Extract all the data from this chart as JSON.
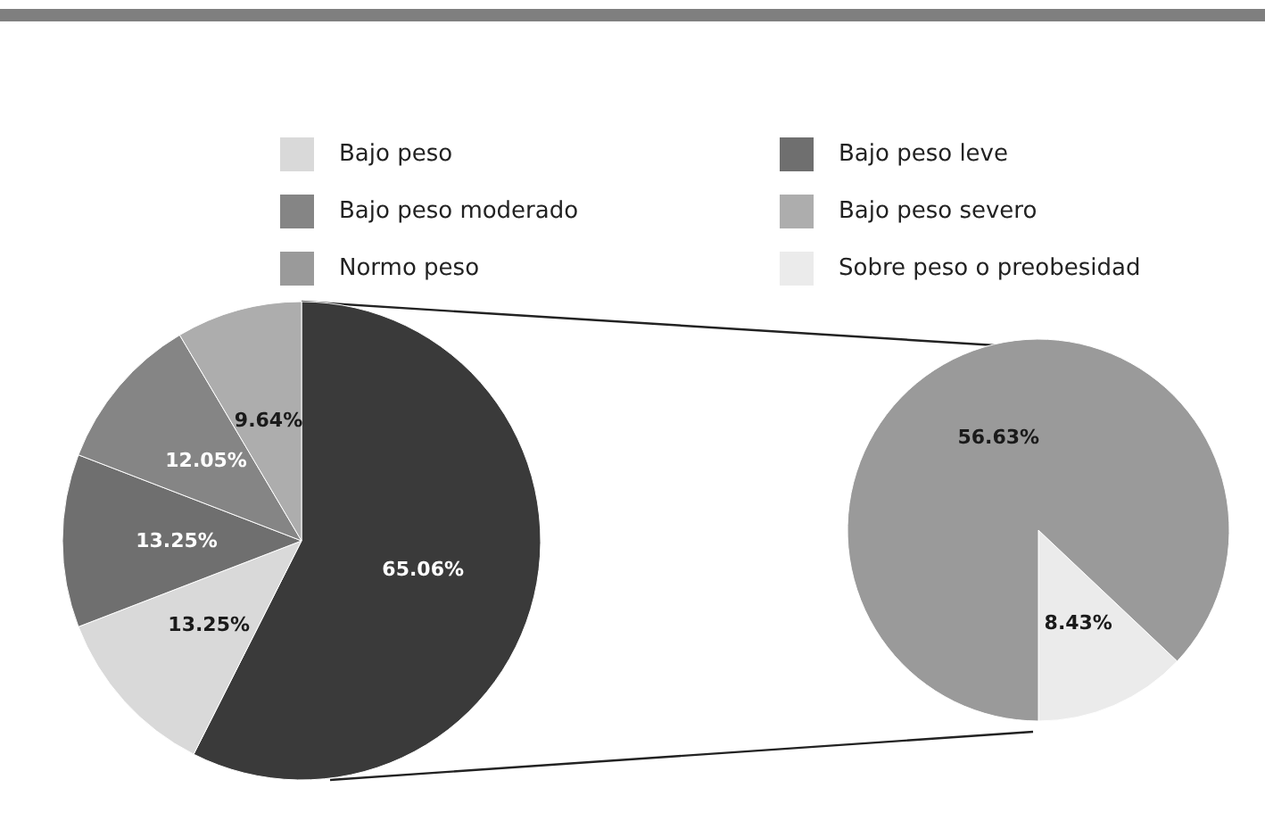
{
  "chart_data": [
    {
      "type": "pie",
      "categories": [
        null,
        "Bajo peso",
        "Bajo peso leve",
        "Bajo peso moderado",
        "Bajo peso severo"
      ],
      "values": [
        65.06,
        13.25,
        13.25,
        12.05,
        9.64
      ],
      "colors": [
        "#3a3a3a",
        "#d9d9d9",
        "#6f6f6f",
        "#858585",
        "#adadad"
      ],
      "value_labels": [
        "65.06%",
        "13.25%",
        "13.25%",
        "12.05%",
        "9.64%"
      ],
      "legend": "top"
    },
    {
      "type": "pie",
      "categories": [
        "Sobre peso o preobesidad",
        "Normo peso"
      ],
      "values": [
        8.43,
        56.63
      ],
      "colors": [
        "#ebebeb",
        "#9a9a9a"
      ],
      "value_labels": [
        "8.43%",
        "56.63%"
      ],
      "legend": "top"
    }
  ]
}
